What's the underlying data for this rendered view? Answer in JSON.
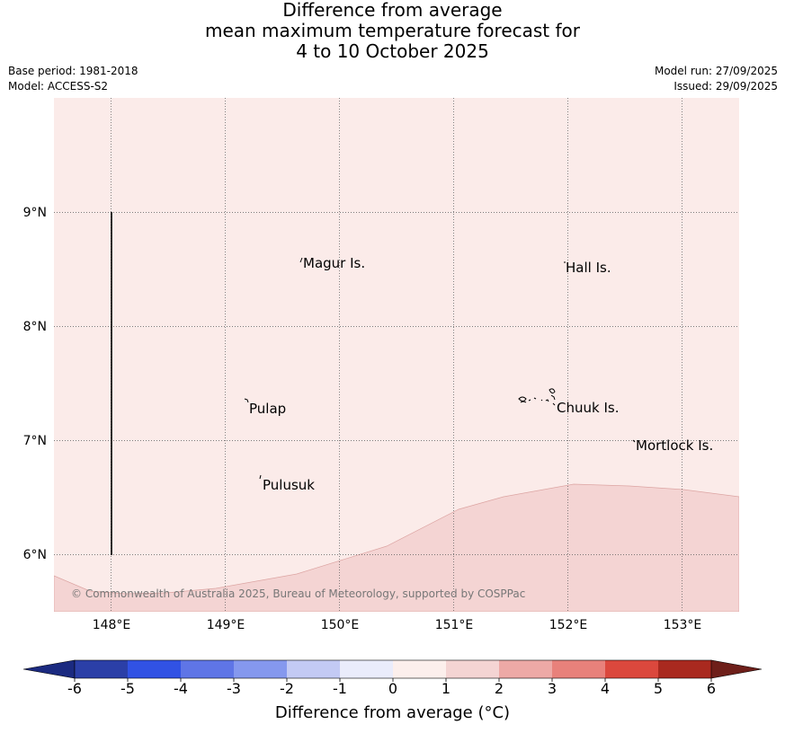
{
  "title": {
    "line1": "Difference from average",
    "line2": "mean maximum temperature forecast for",
    "line3": "4 to 10 October 2025"
  },
  "info": {
    "base_period": "Base period: 1981-2018",
    "model": "Model: ACCESS-S2",
    "model_run": "Model run: 27/09/2025",
    "issued": "Issued: 29/09/2025"
  },
  "map": {
    "lon_range": [
      147.5,
      153.5
    ],
    "lat_range": [
      5.5,
      10.0
    ],
    "lon_labels": [
      "148°E",
      "149°E",
      "150°E",
      "151°E",
      "152°E",
      "153°E"
    ],
    "lat_labels": [
      "9°N",
      "8°N",
      "7°N",
      "6°N"
    ],
    "places": [
      {
        "name": "Magur Is.",
        "lon": 149.68,
        "lat": 8.56
      },
      {
        "name": "Hall Is.",
        "lon": 151.98,
        "lat": 8.52
      },
      {
        "name": "Pulap",
        "lon": 149.2,
        "lat": 7.29
      },
      {
        "name": "Chuuk Is.",
        "lon": 151.9,
        "lat": 7.3
      },
      {
        "name": "Mortlock Is.",
        "lon": 152.58,
        "lat": 6.97
      },
      {
        "name": "Pulusuk",
        "lon": 149.32,
        "lat": 6.62
      }
    ],
    "copyright": "© Commonwealth of Australia 2025, Bureau of Meteorology, supported by COSPPac",
    "fill_colors": {
      "background_band": "#fbebe9",
      "warmer_band": "#f4d4d3"
    }
  },
  "colorbar": {
    "labels": [
      "-6",
      "-5",
      "-4",
      "-3",
      "-2",
      "-1",
      "0",
      "1",
      "2",
      "3",
      "4",
      "5",
      "6"
    ],
    "colors": [
      "#2b3fa7",
      "#3152e4",
      "#5f75e6",
      "#8598ee",
      "#c3caf4",
      "#eaecfb",
      "#fcefec",
      "#f4d4d3",
      "#eda9a6",
      "#e8817b",
      "#db483d",
      "#a9291f"
    ],
    "under_color": "#1b2a80",
    "over_color": "#6e1f1a",
    "title": "Difference from average (°C)"
  }
}
